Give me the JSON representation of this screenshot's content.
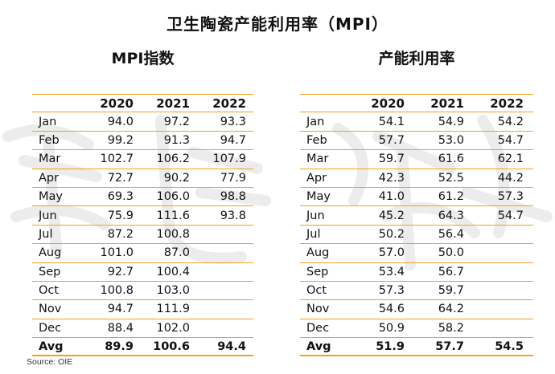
{
  "title": "卫生陶瓷产能利用率（MPI）",
  "source": "Source: OIE",
  "left_table": {
    "heading": "MPI指数",
    "years": [
      "2020",
      "2021",
      "2022"
    ],
    "rows": [
      {
        "month": "Jan",
        "v": [
          "94.0",
          "97.2",
          "93.3"
        ]
      },
      {
        "month": "Feb",
        "v": [
          "99.2",
          "91.3",
          "94.7"
        ]
      },
      {
        "month": "Mar",
        "v": [
          "102.7",
          "106.2",
          "107.9"
        ]
      },
      {
        "month": "Apr",
        "v": [
          "72.7",
          "90.2",
          "77.9"
        ]
      },
      {
        "month": "May",
        "v": [
          "69.3",
          "106.0",
          "98.8"
        ]
      },
      {
        "month": "Jun",
        "v": [
          "75.9",
          "111.6",
          "93.8"
        ]
      },
      {
        "month": "Jul",
        "v": [
          "87.2",
          "100.8",
          ""
        ]
      },
      {
        "month": "Aug",
        "v": [
          "101.0",
          "87.0",
          ""
        ]
      },
      {
        "month": "Sep",
        "v": [
          "92.7",
          "100.4",
          ""
        ]
      },
      {
        "month": "Oct",
        "v": [
          "100.8",
          "103.0",
          ""
        ]
      },
      {
        "month": "Nov",
        "v": [
          "94.7",
          "111.9",
          ""
        ]
      },
      {
        "month": "Dec",
        "v": [
          "88.4",
          "102.0",
          ""
        ]
      }
    ],
    "avg": {
      "label": "Avg",
      "v": [
        "89.9",
        "100.6",
        "94.4"
      ]
    }
  },
  "right_table": {
    "heading": "产能利用率",
    "years": [
      "2020",
      "2021",
      "2022"
    ],
    "rows": [
      {
        "month": "Jan",
        "v": [
          "54.1",
          "54.9",
          "54.2"
        ]
      },
      {
        "month": "Feb",
        "v": [
          "57.7",
          "53.0",
          "54.7"
        ]
      },
      {
        "month": "Mar",
        "v": [
          "59.7",
          "61.6",
          "62.1"
        ]
      },
      {
        "month": "Apr",
        "v": [
          "42.3",
          "52.5",
          "44.2"
        ]
      },
      {
        "month": "May",
        "v": [
          "41.0",
          "61.2",
          "57.3"
        ]
      },
      {
        "month": "Jun",
        "v": [
          "45.2",
          "64.3",
          "54.7"
        ]
      },
      {
        "month": "Jul",
        "v": [
          "50.2",
          "56.4",
          ""
        ]
      },
      {
        "month": "Aug",
        "v": [
          "57.0",
          "50.0",
          ""
        ]
      },
      {
        "month": "Sep",
        "v": [
          "53.4",
          "56.7",
          ""
        ]
      },
      {
        "month": "Oct",
        "v": [
          "57.3",
          "59.7",
          ""
        ]
      },
      {
        "month": "Nov",
        "v": [
          "54.6",
          "64.2",
          ""
        ]
      },
      {
        "month": "Dec",
        "v": [
          "50.9",
          "58.2",
          ""
        ]
      }
    ],
    "avg": {
      "label": "Avg",
      "v": [
        "51.9",
        "57.7",
        "54.5"
      ]
    }
  },
  "colors": {
    "rule": "#f0a020",
    "watermark": "#e6e6e6"
  }
}
